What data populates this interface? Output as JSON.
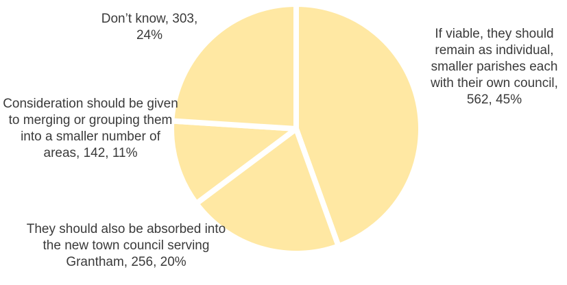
{
  "chart_data": {
    "type": "pie",
    "title": "",
    "colors": {
      "slice": "#FFE8A3",
      "separator": "#FFFFFF",
      "text": "#3A3A3A"
    },
    "slices": [
      {
        "label": "If viable, they should remain as individual, smaller parishes each with their own council, 562, 45%",
        "category": "If viable, they should remain as individual, smaller parishes each with their own council",
        "value": 562,
        "percent": 45
      },
      {
        "label": "They should also be absorbed into the new town council serving Grantham, 256, 20%",
        "category": "They should also be absorbed into the new town council serving Grantham",
        "value": 256,
        "percent": 20
      },
      {
        "label": "Consideration should be given to merging or grouping them into a smaller number of areas, 142, 11%",
        "category": "Consideration should be given to merging or grouping them into a smaller number of areas",
        "value": 142,
        "percent": 11
      },
      {
        "label": "Don’t know, 303, 24%",
        "category": "Don’t know",
        "value": 303,
        "percent": 24
      }
    ]
  }
}
